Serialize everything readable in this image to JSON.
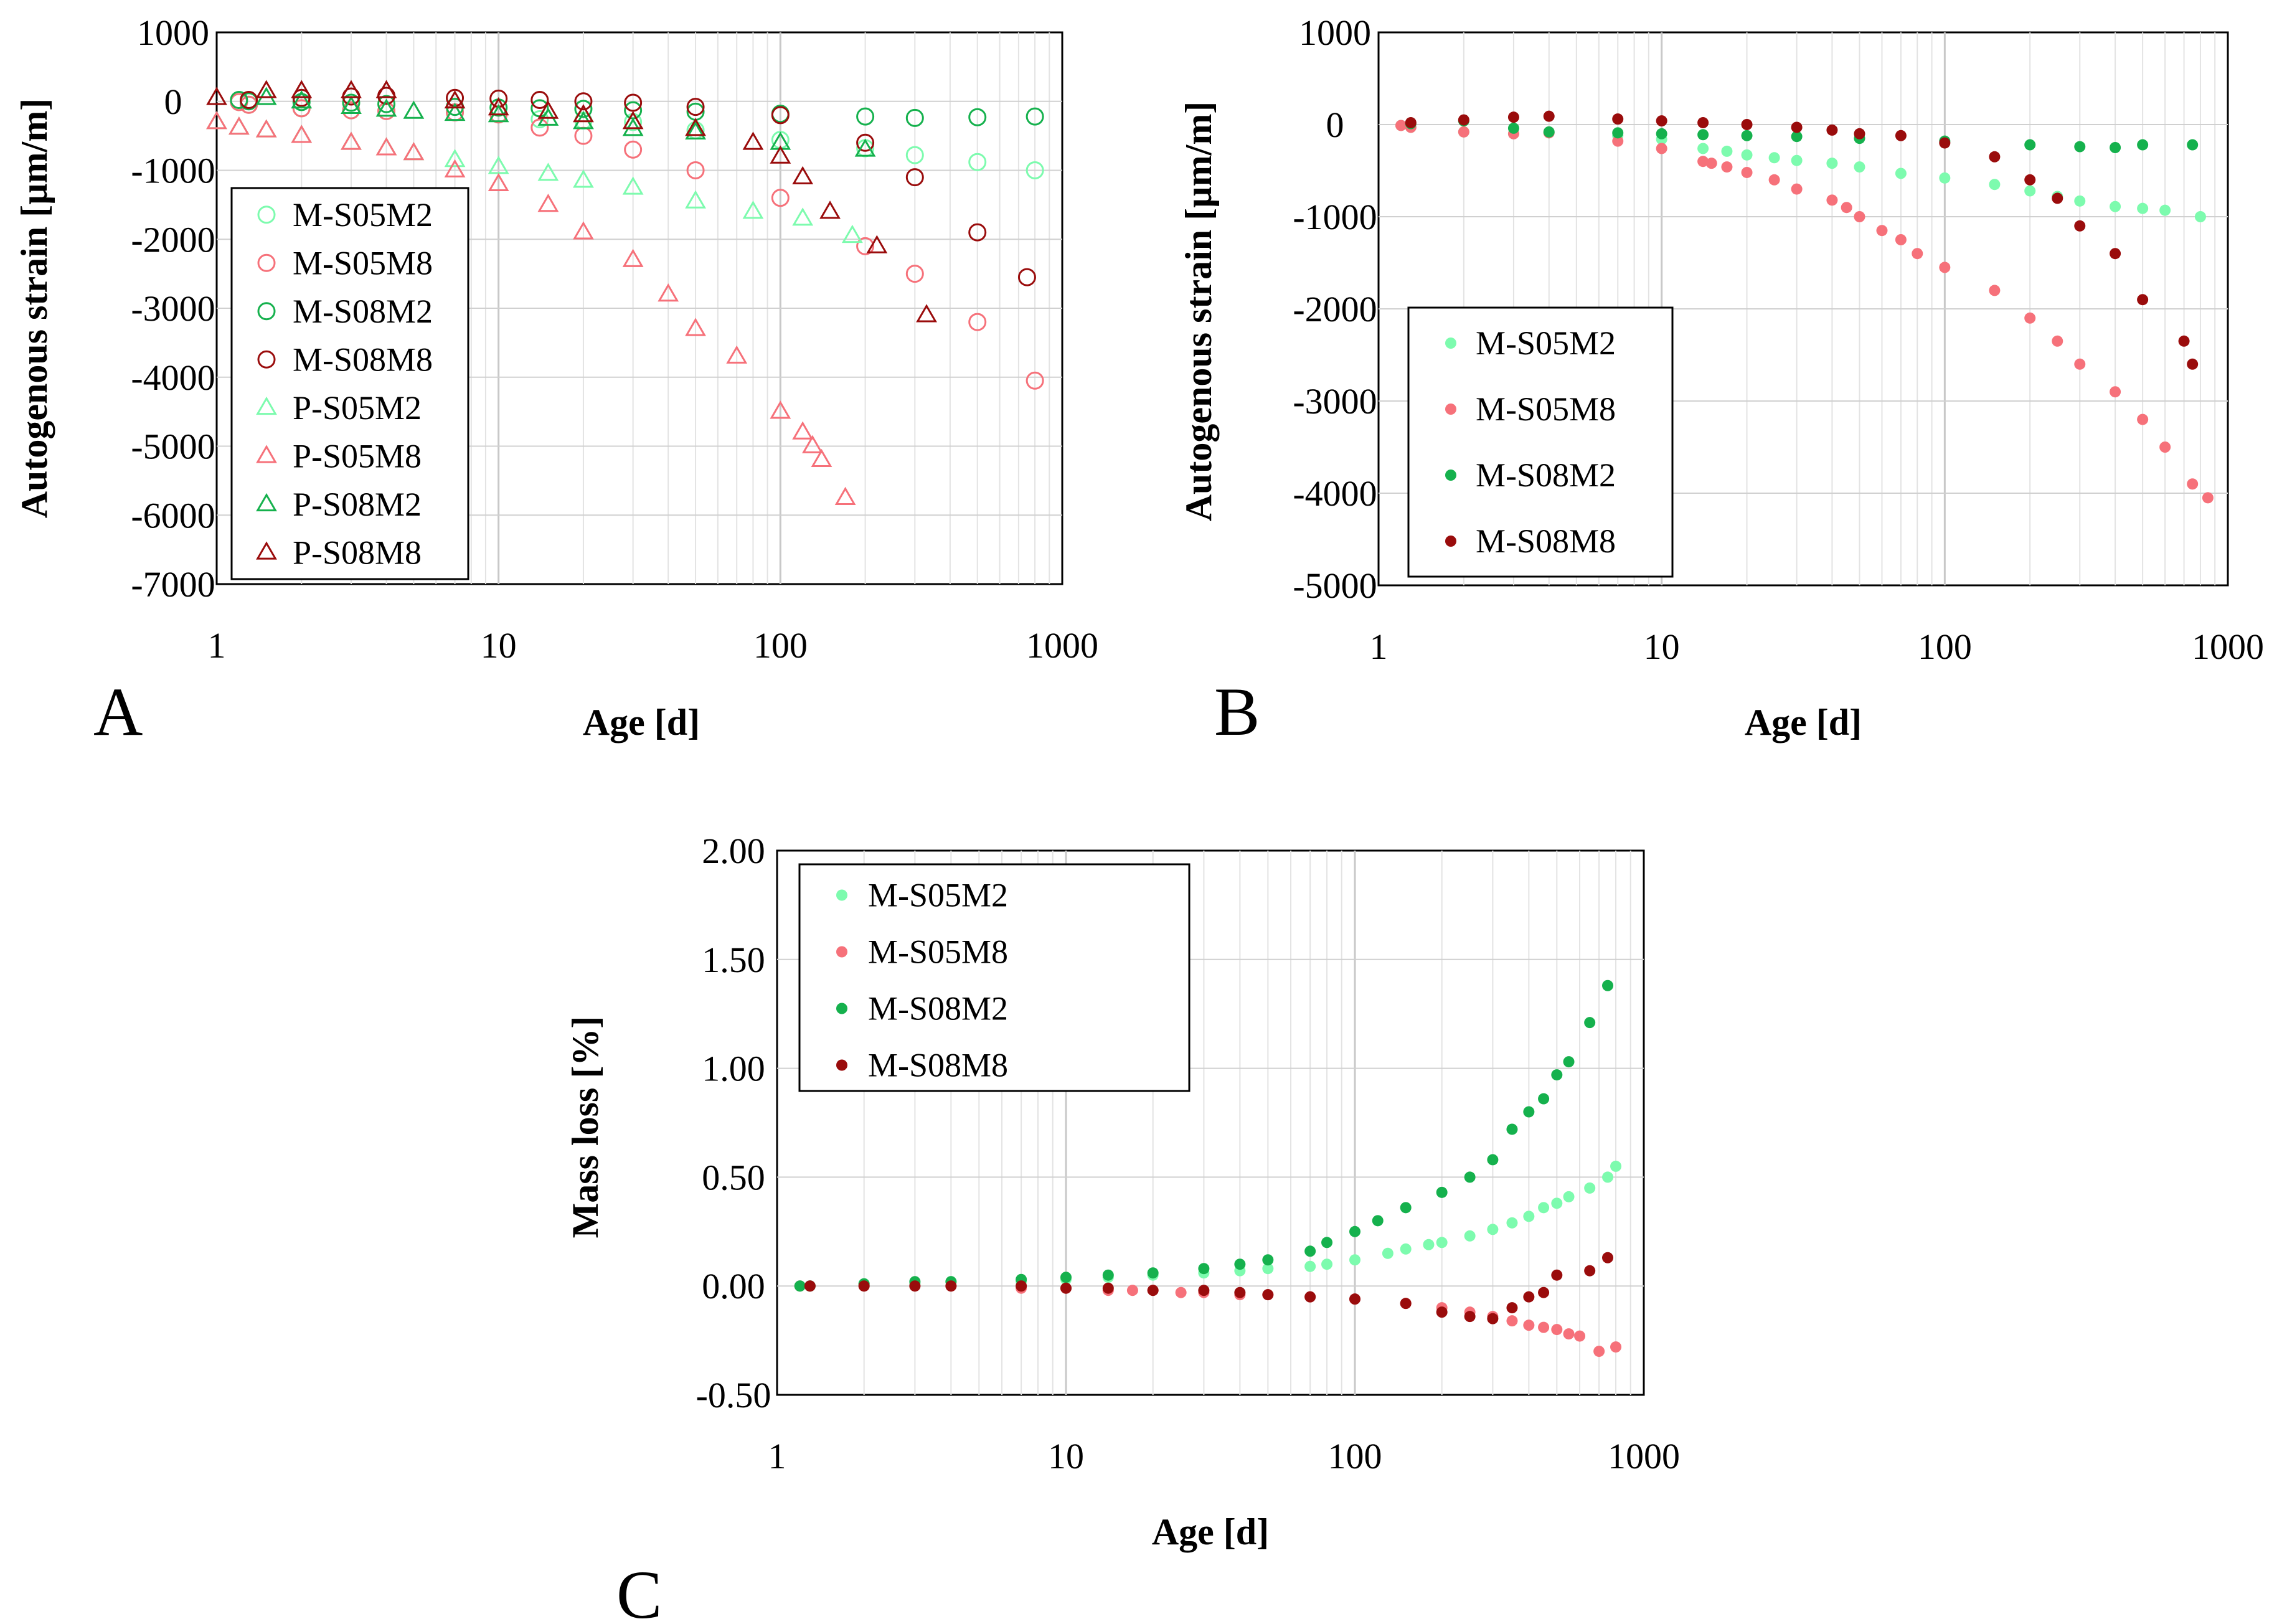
{
  "colors": {
    "M-S05M2": "#7dfbae",
    "M-S05M8": "#f6717a",
    "M-S08M2": "#15b14d",
    "M-S08M8": "#9a0c0c",
    "P-S05M2": "#7dfbae",
    "P-S05M8": "#f6717a",
    "P-S08M2": "#15b14d",
    "P-S08M8": "#9a0c0c"
  },
  "chart_data": [
    {
      "panel": "A",
      "type": "scatter",
      "xscale": "log",
      "xlabel": "Age [d]",
      "ylabel": "Autogenous strain [µm/m]",
      "xlim": [
        1,
        1000
      ],
      "ylim": [
        -7000,
        1000
      ],
      "x_ticks": [
        "1",
        "10",
        "100",
        "1000"
      ],
      "y_ticks": [
        "1000",
        "0",
        "-1000",
        "-2000",
        "-3000",
        "-4000",
        "-5000",
        "-6000",
        "-7000"
      ],
      "legend": [
        "M-S05M2",
        "M-S05M8",
        "M-S08M2",
        "M-S08M8",
        "P-S05M2",
        "P-S05M8",
        "P-S08M2",
        "P-S08M8"
      ],
      "series": [
        {
          "name": "M-S05M2",
          "marker": "open-circle",
          "x": [
            1.2,
            1.3,
            2,
            3,
            4,
            7,
            10,
            14,
            20,
            30,
            50,
            100,
            200,
            300,
            500,
            800
          ],
          "y": [
            -10,
            -50,
            -100,
            -130,
            -140,
            -160,
            -190,
            -260,
            -280,
            -300,
            -420,
            -560,
            -680,
            -780,
            -880,
            -1000
          ]
        },
        {
          "name": "M-S05M8",
          "marker": "open-circle",
          "x": [
            1.2,
            1.3,
            2,
            3,
            4,
            7,
            10,
            14,
            20,
            30,
            50,
            100,
            200,
            300,
            500,
            800
          ],
          "y": [
            -10,
            -50,
            -100,
            -130,
            -140,
            -160,
            -190,
            -380,
            -500,
            -700,
            -1000,
            -1400,
            -2100,
            -2500,
            -3200,
            -4050
          ]
        },
        {
          "name": "M-S08M2",
          "marker": "open-circle",
          "x": [
            1.2,
            1.3,
            2,
            3,
            4,
            7,
            10,
            14,
            20,
            30,
            50,
            100,
            200,
            300,
            500,
            800
          ],
          "y": [
            20,
            0,
            -10,
            -20,
            -40,
            -80,
            -90,
            -100,
            -110,
            -130,
            -150,
            -180,
            -220,
            -240,
            -230,
            -220
          ]
        },
        {
          "name": "M-S08M8",
          "marker": "open-circle",
          "x": [
            1.3,
            2,
            3,
            4,
            7,
            10,
            14,
            20,
            30,
            50,
            100,
            200,
            300,
            500,
            750
          ],
          "y": [
            20,
            50,
            70,
            80,
            50,
            40,
            20,
            0,
            -20,
            -80,
            -200,
            -600,
            -1100,
            -1900,
            -2550
          ]
        },
        {
          "name": "P-S05M2",
          "marker": "open-triangle",
          "x": [
            1,
            1.2,
            1.5,
            2,
            3,
            4,
            5,
            7,
            10,
            15,
            20,
            30,
            50,
            80,
            120,
            180
          ],
          "y": [
            -300,
            -380,
            -420,
            -500,
            -600,
            -680,
            -750,
            -850,
            -950,
            -1050,
            -1150,
            -1250,
            -1450,
            -1600,
            -1700,
            -1950
          ]
        },
        {
          "name": "P-S05M8",
          "marker": "open-triangle",
          "x": [
            1,
            1.2,
            1.5,
            2,
            3,
            4,
            5,
            7,
            10,
            15,
            20,
            30,
            40,
            50,
            70,
            100,
            120,
            130,
            140,
            170
          ],
          "y": [
            -300,
            -380,
            -420,
            -500,
            -600,
            -680,
            -750,
            -1000,
            -1200,
            -1500,
            -1900,
            -2300,
            -2800,
            -3300,
            -3700,
            -4500,
            -4800,
            -5000,
            -5200,
            -5750
          ]
        },
        {
          "name": "P-S08M2",
          "marker": "open-triangle",
          "x": [
            1.5,
            2,
            3,
            4,
            5,
            7,
            10,
            15,
            20,
            30,
            50,
            100,
            200
          ],
          "y": [
            50,
            0,
            -80,
            -120,
            -150,
            -180,
            -200,
            -250,
            -300,
            -400,
            -450,
            -600,
            -700
          ]
        },
        {
          "name": "P-S08M8",
          "marker": "open-triangle",
          "x": [
            1,
            1.5,
            2,
            3,
            4,
            7,
            10,
            15,
            20,
            30,
            50,
            80,
            100,
            120,
            150,
            220,
            330
          ],
          "y": [
            50,
            150,
            150,
            150,
            150,
            0,
            -100,
            -150,
            -200,
            -300,
            -400,
            -600,
            -800,
            -1100,
            -1600,
            -2100,
            -3100
          ]
        }
      ]
    },
    {
      "panel": "B",
      "type": "scatter",
      "xscale": "log",
      "xlabel": "Age [d]",
      "ylabel": "Autogenous strain [µm/m]",
      "xlim": [
        1,
        1000
      ],
      "ylim": [
        -5000,
        1000
      ],
      "x_ticks": [
        "1",
        "10",
        "100",
        "1000"
      ],
      "y_ticks": [
        "1000",
        "0",
        "-1000",
        "-2000",
        "-3000",
        "-4000",
        "-5000"
      ],
      "legend": [
        "M-S05M2",
        "M-S05M8",
        "M-S08M2",
        "M-S08M8"
      ],
      "series": [
        {
          "name": "M-S05M2",
          "marker": "filled-circle",
          "x": [
            1.2,
            1.3,
            2,
            3,
            4,
            7,
            10,
            14,
            17,
            20,
            25,
            30,
            40,
            50,
            70,
            100,
            150,
            200,
            250,
            300,
            400,
            500,
            600,
            800
          ],
          "y": [
            -10,
            -30,
            -80,
            -100,
            -90,
            -120,
            -160,
            -260,
            -290,
            -330,
            -360,
            -390,
            -420,
            -460,
            -530,
            -580,
            -650,
            -720,
            -780,
            -830,
            -890,
            -910,
            -930,
            -1000
          ]
        },
        {
          "name": "M-S05M8",
          "marker": "filled-circle",
          "x": [
            1.2,
            1.3,
            2,
            3,
            4,
            7,
            10,
            14,
            15,
            17,
            20,
            25,
            30,
            40,
            45,
            50,
            60,
            70,
            80,
            100,
            150,
            200,
            250,
            300,
            400,
            500,
            600,
            750,
            850
          ],
          "y": [
            -10,
            -30,
            -80,
            -100,
            -90,
            -180,
            -260,
            -400,
            -420,
            -460,
            -520,
            -600,
            -700,
            -820,
            -900,
            -1000,
            -1150,
            -1250,
            -1400,
            -1550,
            -1800,
            -2100,
            -2350,
            -2600,
            -2900,
            -3200,
            -3500,
            -3900,
            -4050
          ]
        },
        {
          "name": "M-S08M2",
          "marker": "filled-circle",
          "x": [
            1.3,
            2,
            3,
            4,
            7,
            10,
            14,
            20,
            30,
            50,
            100,
            200,
            300,
            400,
            500,
            750
          ],
          "y": [
            10,
            40,
            -40,
            -80,
            -90,
            -100,
            -110,
            -120,
            -130,
            -150,
            -180,
            -220,
            -240,
            -250,
            -220,
            -220
          ]
        },
        {
          "name": "M-S08M8",
          "marker": "filled-circle",
          "x": [
            1.3,
            2,
            3,
            4,
            7,
            10,
            14,
            20,
            30,
            40,
            50,
            70,
            100,
            150,
            200,
            250,
            300,
            400,
            500,
            700,
            750
          ],
          "y": [
            20,
            50,
            80,
            90,
            60,
            40,
            20,
            0,
            -30,
            -60,
            -100,
            -120,
            -200,
            -350,
            -600,
            -800,
            -1100,
            -1400,
            -1900,
            -2350,
            -2600
          ]
        }
      ]
    },
    {
      "panel": "C",
      "type": "scatter",
      "xscale": "log",
      "xlabel": "Age [d]",
      "ylabel": "Mass loss [%]",
      "xlim": [
        1,
        1000
      ],
      "ylim": [
        -0.5,
        2.0
      ],
      "x_ticks": [
        "1",
        "10",
        "100",
        "1000"
      ],
      "y_ticks": [
        "2.00",
        "1.50",
        "1.00",
        "0.50",
        "0.00",
        "-0.50"
      ],
      "legend": [
        "M-S05M2",
        "M-S05M8",
        "M-S08M2",
        "M-S08M8"
      ],
      "series": [
        {
          "name": "M-S05M2",
          "marker": "filled-circle",
          "x": [
            1.2,
            1.3,
            2,
            3,
            4,
            7,
            10,
            14,
            20,
            30,
            40,
            50,
            70,
            80,
            100,
            130,
            150,
            180,
            200,
            250,
            300,
            350,
            400,
            450,
            500,
            550,
            650,
            750,
            800
          ],
          "y": [
            0,
            0,
            0.01,
            0.01,
            0.02,
            0.02,
            0.03,
            0.04,
            0.05,
            0.06,
            0.07,
            0.08,
            0.09,
            0.1,
            0.12,
            0.15,
            0.17,
            0.19,
            0.2,
            0.23,
            0.26,
            0.29,
            0.32,
            0.36,
            0.38,
            0.41,
            0.45,
            0.5,
            0.55
          ]
        },
        {
          "name": "M-S05M8",
          "marker": "filled-circle",
          "x": [
            1.2,
            1.3,
            2,
            3,
            4,
            7,
            10,
            14,
            17,
            20,
            25,
            30,
            40,
            50,
            70,
            100,
            150,
            200,
            250,
            300,
            350,
            400,
            450,
            500,
            550,
            600,
            700,
            800
          ],
          "y": [
            0,
            0,
            0,
            0,
            0,
            -0.01,
            -0.01,
            -0.02,
            -0.02,
            -0.02,
            -0.03,
            -0.03,
            -0.04,
            -0.04,
            -0.05,
            -0.06,
            -0.08,
            -0.1,
            -0.12,
            -0.14,
            -0.16,
            -0.18,
            -0.19,
            -0.2,
            -0.22,
            -0.23,
            -0.3,
            -0.28
          ]
        },
        {
          "name": "M-S08M2",
          "marker": "filled-circle",
          "x": [
            1.2,
            1.3,
            2,
            3,
            4,
            7,
            10,
            14,
            20,
            30,
            40,
            50,
            70,
            80,
            100,
            120,
            150,
            200,
            250,
            300,
            350,
            400,
            450,
            500,
            550,
            650,
            750
          ],
          "y": [
            0,
            0,
            0.01,
            0.02,
            0.02,
            0.03,
            0.04,
            0.05,
            0.06,
            0.08,
            0.1,
            0.12,
            0.16,
            0.2,
            0.25,
            0.3,
            0.36,
            0.43,
            0.5,
            0.58,
            0.72,
            0.8,
            0.86,
            0.97,
            1.03,
            1.21,
            1.38
          ]
        },
        {
          "name": "M-S08M8",
          "marker": "filled-circle",
          "x": [
            1.3,
            2,
            3,
            4,
            7,
            10,
            14,
            20,
            30,
            40,
            50,
            70,
            100,
            150,
            200,
            250,
            300,
            350,
            400,
            450,
            500,
            650,
            750
          ],
          "y": [
            0,
            0,
            0,
            0,
            0,
            -0.01,
            -0.01,
            -0.02,
            -0.02,
            -0.03,
            -0.04,
            -0.05,
            -0.06,
            -0.08,
            -0.12,
            -0.14,
            -0.15,
            -0.1,
            -0.05,
            -0.03,
            0.05,
            0.07,
            0.13
          ]
        }
      ]
    }
  ],
  "panel_letters": [
    "A",
    "B",
    "C"
  ]
}
